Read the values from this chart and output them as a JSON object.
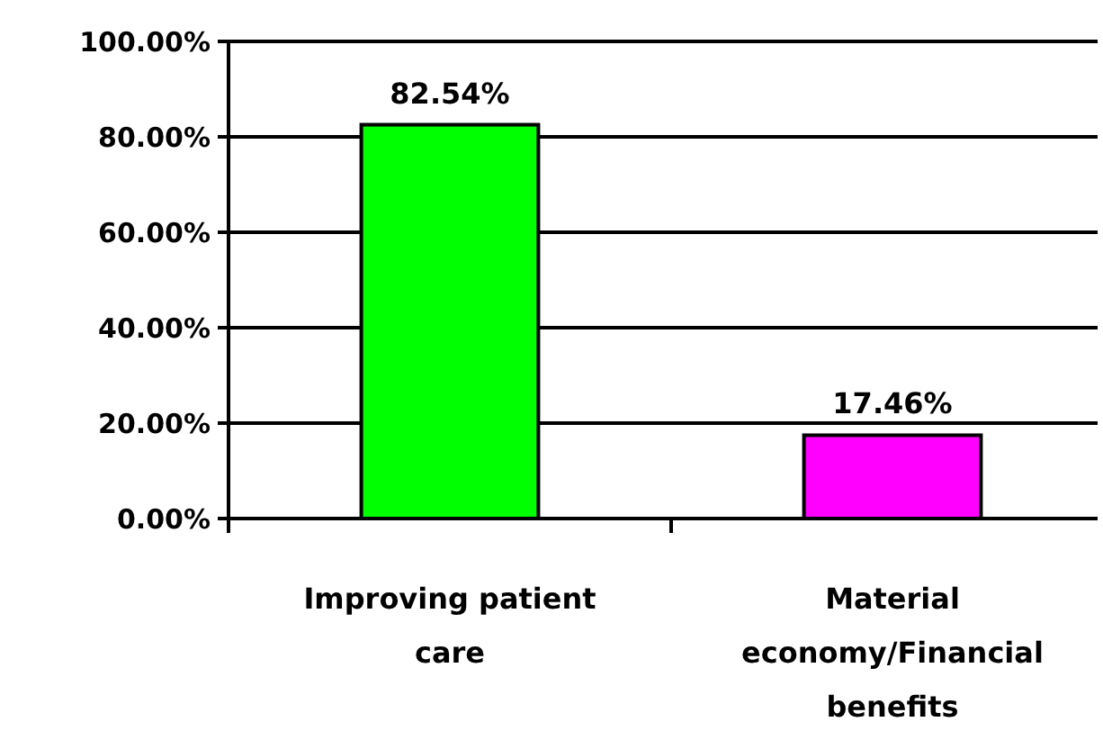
{
  "chart_data": {
    "type": "bar",
    "categories": [
      "Improving patient care",
      "Material economy/Financial benefits"
    ],
    "values": [
      82.54,
      17.46
    ],
    "colors": [
      "#00ff00",
      "#ff00ff"
    ],
    "value_labels": [
      "82.54%",
      "17.46%"
    ],
    "ylim": [
      0,
      100
    ],
    "yticks": [
      {
        "value": 0,
        "label": "0.00%"
      },
      {
        "value": 20,
        "label": "20.00%"
      },
      {
        "value": 40,
        "label": "40.00%"
      },
      {
        "value": 60,
        "label": "60.00%"
      },
      {
        "value": 80,
        "label": "80.00%"
      },
      {
        "value": 100,
        "label": "100.00%"
      }
    ],
    "grid": "y"
  }
}
